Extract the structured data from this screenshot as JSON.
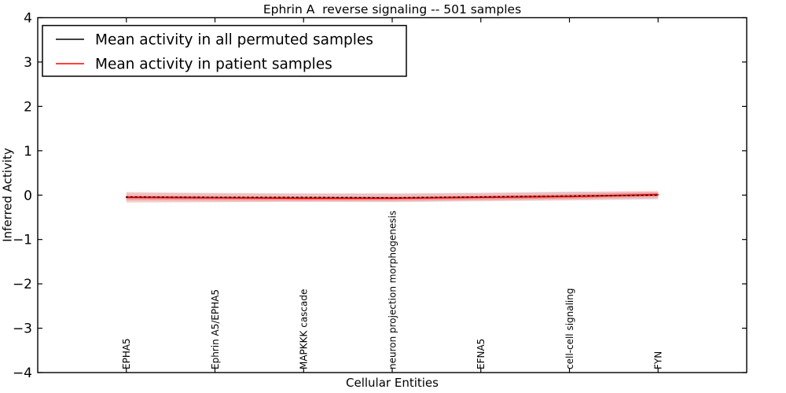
{
  "figure": {
    "title": "Ephrin A  reverse signaling -- 501 samples"
  },
  "chart_data": {
    "type": "line",
    "title": "Ephrin A  reverse signaling -- 501 samples",
    "xlabel": "Cellular Entities",
    "ylabel": "Inferred Activity",
    "ylim": [
      -4,
      4
    ],
    "yticks": [
      4,
      3,
      2,
      1,
      0,
      -1,
      -2,
      -3,
      -4
    ],
    "grid": false,
    "legend_position": "upper left",
    "categories": [
      "EPHA5",
      "Ephrin A5/EPHA5",
      "MAPKKK cascade",
      "neuron projection morphogenesis",
      "EFNA5",
      "cell-cell signaling",
      "FYN"
    ],
    "series": [
      {
        "name": "Mean activity in all permuted samples",
        "color": "#000000",
        "line_style": "dotted",
        "values": [
          -0.04,
          -0.05,
          -0.05,
          -0.06,
          -0.04,
          -0.02,
          0.0
        ]
      },
      {
        "name": "Mean activity in patient samples",
        "color": "#ff0000",
        "line_style": "solid",
        "values": [
          -0.05,
          -0.06,
          -0.07,
          -0.07,
          -0.05,
          -0.03,
          0.01
        ]
      }
    ],
    "bands": [
      {
        "name": "permuted-samples-std-band",
        "color": "#555555",
        "opacity": 0.14,
        "upper": [
          0.05,
          0.04,
          0.03,
          0.03,
          0.05,
          0.08,
          0.07
        ],
        "lower": [
          -0.14,
          -0.15,
          -0.15,
          -0.16,
          -0.14,
          -0.12,
          -0.1
        ]
      },
      {
        "name": "patient-samples-std-band",
        "color": "#ff0000",
        "opacity": 0.16,
        "upper": [
          0.07,
          0.05,
          0.04,
          0.04,
          0.05,
          0.07,
          0.1
        ],
        "lower": [
          -0.17,
          -0.16,
          -0.15,
          -0.15,
          -0.13,
          -0.11,
          -0.08
        ]
      },
      {
        "name": "patient-samples-core-band",
        "color": "#ff0000",
        "opacity": 0.24,
        "upper": [
          -0.01,
          -0.02,
          -0.03,
          -0.03,
          -0.01,
          0.02,
          0.06
        ],
        "lower": [
          -0.1,
          -0.11,
          -0.12,
          -0.12,
          -0.1,
          -0.08,
          -0.04
        ]
      }
    ]
  }
}
